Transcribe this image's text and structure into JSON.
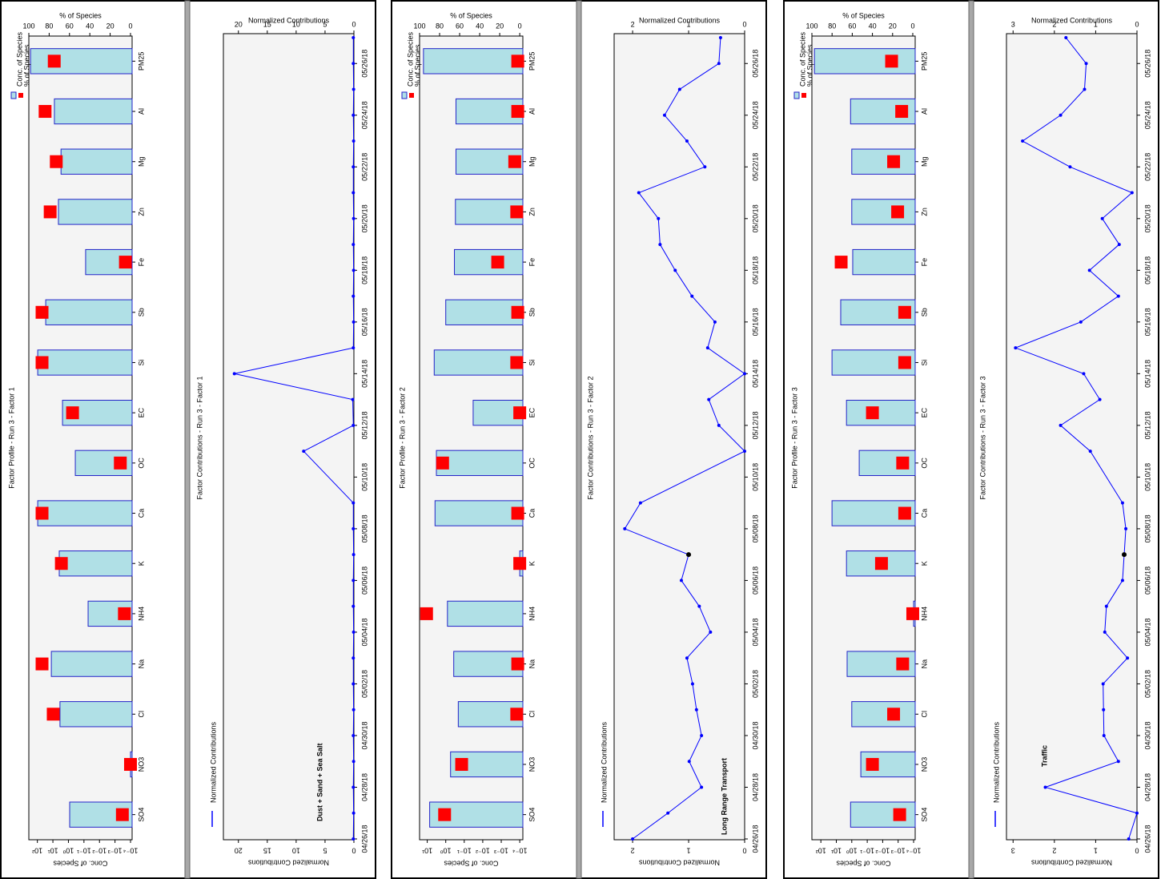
{
  "chart_data": [
    {
      "type": "bar",
      "title": "Factor Profile - Run 3 - Factor 1",
      "ylabel": "Conc. of Species",
      "y2label": "% of Species",
      "log_scale": true,
      "categories": [
        "PM25",
        "Al",
        "Mg",
        "Zn",
        "Fe",
        "Sb",
        "Si",
        "EC",
        "OC",
        "Ca",
        "K",
        "NH4",
        "Na",
        "Cl",
        "NO3",
        "SO4"
      ],
      "series": [
        {
          "name": "Conc. of Species",
          "color": "#b0e0e6",
          "values": [
            275,
            8,
            3,
            4.4,
            0.078,
            29,
            95,
            2.4,
            0.36,
            95,
            3.9,
            0.054,
            12.6,
            3.5,
            0.0001,
            0.83
          ]
        },
        {
          "name": "% of Species",
          "color": "#ff0000",
          "axis": "y2",
          "values": [
            75,
            84,
            73,
            79,
            5,
            87,
            87,
            57,
            10,
            87,
            68,
            6,
            87,
            76,
            0,
            8
          ]
        }
      ],
      "ylim": [
        7.9e-05,
        355
      ],
      "yticks": [
        {
          "value": 100,
          "label": "10²"
        },
        {
          "value": 10,
          "label": "10¹"
        },
        {
          "value": 1,
          "label": "10⁰"
        },
        {
          "value": 0.1,
          "label": "10⁻¹"
        },
        {
          "value": 0.01,
          "label": "10⁻²"
        },
        {
          "value": 0.001,
          "label": "10⁻³"
        },
        {
          "value": 0.0001,
          "label": "10⁻⁴"
        }
      ],
      "y2lim": [
        -1.6,
        100
      ],
      "y2ticks": [
        0,
        20,
        40,
        60,
        80,
        100
      ]
    },
    {
      "type": "line",
      "title": "Factor Contributions - Run 3 - Factor 1",
      "ylabel": "Normalized Contributions",
      "annotation": "Dust + Sand + Sea Salt",
      "x": [
        "04/26/18",
        "04/27/18",
        "04/28/18",
        "04/29/18",
        "04/30/18",
        "05/01/18",
        "05/02/18",
        "05/03/18",
        "05/04/18",
        "05/05/18",
        "05/06/18",
        "05/07/18",
        "05/08/18",
        "05/09/18",
        "05/11/18",
        "05/12/18",
        "05/13/18",
        "05/14/18",
        "05/15/18",
        "05/16/18",
        "05/17/18",
        "05/18/18",
        "05/19/18",
        "05/20/18",
        "05/21/18",
        "05/22/18",
        "05/23/18",
        "05/24/18",
        "05/25/18",
        "05/26/18",
        "05/27/18"
      ],
      "series": [
        {
          "name": "Normalized Contributions",
          "color": "#0000ff",
          "values": [
            0.1,
            0.05,
            0.1,
            0.05,
            0.1,
            0.05,
            0.1,
            0.1,
            0.05,
            0.1,
            0.1,
            0.05,
            0.1,
            0.1,
            8.7,
            0.1,
            0.2,
            20.7,
            0.1,
            0.05,
            0.1,
            0.05,
            0.1,
            0.05,
            0.1,
            0.1,
            0.05,
            0.1,
            0.05,
            0.1,
            0.1
          ]
        }
      ],
      "xlim": [
        "04/26/18",
        "05/27/18"
      ],
      "xticks": [
        "04/26/18",
        "04/28/18",
        "04/30/18",
        "05/02/18",
        "05/04/18",
        "05/06/18",
        "05/08/18",
        "05/10/18",
        "05/12/18",
        "05/14/18",
        "05/16/18",
        "05/18/18",
        "05/20/18",
        "05/22/18",
        "05/24/18",
        "05/26/18"
      ],
      "ylim": [
        0,
        22.6
      ],
      "yticks": [
        0,
        5,
        10,
        15,
        20
      ]
    },
    {
      "type": "bar",
      "title": "Factor Profile - Run 3 - Factor 2",
      "ylabel": "Conc. of Species",
      "y2label": "% of Species",
      "log_scale": true,
      "categories": [
        "PM25",
        "Al",
        "Mg",
        "Zn",
        "Fe",
        "Sb",
        "Si",
        "EC",
        "OC",
        "Ca",
        "K",
        "NH4",
        "Na",
        "Cl",
        "NO3",
        "SO4"
      ],
      "series": [
        {
          "name": "Conc. of Species",
          "color": "#b0e0e6",
          "values": [
            16,
            0.28,
            0.28,
            0.3,
            0.34,
            1.0,
            4.2,
            0.033,
            3.2,
            3.8,
            0.0001,
            0.81,
            0.37,
            0.21,
            0.55,
            7.4
          ]
        },
        {
          "name": "% of Species",
          "color": "#ff0000",
          "axis": "y2",
          "values": [
            2,
            2,
            5,
            3,
            22,
            2,
            3,
            0,
            77,
            2,
            0,
            93,
            2,
            3,
            58,
            75
          ]
        }
      ],
      "ylim": [
        6.8e-05,
        26
      ],
      "yticks": [
        {
          "value": 10,
          "label": "10¹"
        },
        {
          "value": 1,
          "label": "10⁰"
        },
        {
          "value": 0.1,
          "label": "10⁻¹"
        },
        {
          "value": 0.01,
          "label": "10⁻²"
        },
        {
          "value": 0.001,
          "label": "10⁻³"
        },
        {
          "value": 0.0001,
          "label": "10⁻⁴"
        }
      ],
      "y2lim": [
        -3.1,
        100
      ],
      "y2ticks": [
        0,
        20,
        40,
        60,
        80,
        100
      ]
    },
    {
      "type": "line",
      "title": "Factor Contributions - Run 3 - Factor 2",
      "ylabel": "Normalized Contributions",
      "annotation": "Long Range Transport",
      "highlight": "05/07/18",
      "x": [
        "04/26/18",
        "04/27/18",
        "04/28/18",
        "04/29/18",
        "04/30/18",
        "05/01/18",
        "05/02/18",
        "05/03/18",
        "05/04/18",
        "05/05/18",
        "05/06/18",
        "05/07/18",
        "05/08/18",
        "05/09/18",
        "05/11/18",
        "05/12/18",
        "05/13/18",
        "05/14/18",
        "05/15/18",
        "05/16/18",
        "05/17/18",
        "05/18/18",
        "05/19/18",
        "05/20/18",
        "05/21/18",
        "05/22/18",
        "05/23/18",
        "05/24/18",
        "05/25/18",
        "05/26/18",
        "05/27/18"
      ],
      "series": [
        {
          "name": "Normalized Contributions",
          "color": "#0000ff",
          "values": [
            2.0,
            1.37,
            0.77,
            0.99,
            0.77,
            0.86,
            0.93,
            1.03,
            0.61,
            0.81,
            1.13,
            1.0,
            2.14,
            1.86,
            0,
            0.46,
            0.64,
            0,
            0.66,
            0.53,
            0.94,
            1.24,
            1.51,
            1.54,
            1.89,
            0.71,
            1.03,
            1.43,
            1.16,
            0.46,
            0.43
          ]
        }
      ],
      "xlim": [
        "04/26/18",
        "05/27/18"
      ],
      "xticks": [
        "04/26/18",
        "04/28/18",
        "04/30/18",
        "05/02/18",
        "05/04/18",
        "05/06/18",
        "05/08/18",
        "05/10/18",
        "05/12/18",
        "05/14/18",
        "05/16/18",
        "05/18/18",
        "05/20/18",
        "05/22/18",
        "05/24/18",
        "05/26/18"
      ],
      "ylim": [
        0,
        2.33
      ],
      "yticks": [
        0,
        1,
        2
      ]
    },
    {
      "type": "bar",
      "title": "Factor Profile - Run 3 - Factor 3",
      "ylabel": "Conc. of Species",
      "y2label": "% of Species",
      "log_scale": true,
      "categories": [
        "PM25",
        "Al",
        "Mg",
        "Zn",
        "Fe",
        "Sb",
        "Si",
        "EC",
        "OC",
        "Ca",
        "K",
        "NH4",
        "Na",
        "Cl",
        "NO3",
        "SO4"
      ],
      "series": [
        {
          "name": "Conc. of Species",
          "color": "#b0e0e6",
          "values": [
            260,
            1.2,
            1.0,
            1.0,
            0.87,
            5.2,
            19,
            2.2,
            0.33,
            19,
            2.2,
            0.0001,
            2.0,
            1.0,
            0.26,
            1.2
          ]
        },
        {
          "name": "% of Species",
          "color": "#ff0000",
          "axis": "y2",
          "values": [
            21,
            11,
            19,
            15,
            71,
            8,
            8,
            40,
            10,
            8,
            31,
            0,
            10,
            19,
            40,
            13
          ]
        }
      ],
      "ylim": [
        7.9e-05,
        380
      ],
      "yticks": [
        {
          "value": 100,
          "label": "10²"
        },
        {
          "value": 10,
          "label": "10¹"
        },
        {
          "value": 1,
          "label": "10⁰"
        },
        {
          "value": 0.1,
          "label": "10⁻¹"
        },
        {
          "value": 0.01,
          "label": "10⁻²"
        },
        {
          "value": 0.001,
          "label": "10⁻³"
        },
        {
          "value": 0.0001,
          "label": "10⁻⁴"
        }
      ],
      "y2lim": [
        -2.4,
        100
      ],
      "y2ticks": [
        0,
        20,
        40,
        60,
        80,
        100
      ]
    },
    {
      "type": "line",
      "title": "Factor Contributions - Run 3 - Factor 3",
      "ylabel": "Normalized Contributions",
      "annotation": "Traffic",
      "highlight": "05/07/18",
      "x": [
        "04/26/18",
        "04/27/18",
        "04/28/18",
        "04/29/18",
        "04/30/18",
        "05/01/18",
        "05/02/18",
        "05/03/18",
        "05/04/18",
        "05/05/18",
        "05/06/18",
        "05/07/18",
        "05/08/18",
        "05/09/18",
        "05/11/18",
        "05/12/18",
        "05/13/18",
        "05/14/18",
        "05/15/18",
        "05/16/18",
        "05/17/18",
        "05/18/18",
        "05/19/18",
        "05/20/18",
        "05/21/18",
        "05/22/18",
        "05/23/18",
        "05/24/18",
        "05/25/18",
        "05/26/18",
        "05/27/18"
      ],
      "series": [
        {
          "name": "Normalized Contributions",
          "color": "#0000ff",
          "values": [
            0.2,
            0.0,
            2.22,
            0.45,
            0.8,
            0.81,
            0.82,
            0.23,
            0.78,
            0.74,
            0.35,
            0.31,
            0.27,
            0.35,
            1.13,
            1.85,
            0.9,
            1.29,
            2.94,
            1.36,
            0.45,
            1.15,
            0.43,
            0.84,
            0.12,
            1.62,
            2.77,
            1.85,
            1.27,
            1.23,
            1.72
          ]
        }
      ],
      "xlim": [
        "04/26/18",
        "05/27/18"
      ],
      "xticks": [
        "04/26/18",
        "04/28/18",
        "04/30/18",
        "05/02/18",
        "05/04/18",
        "05/06/18",
        "05/08/18",
        "05/10/18",
        "05/12/18",
        "05/14/18",
        "05/16/18",
        "05/18/18",
        "05/20/18",
        "05/22/18",
        "05/24/18",
        "05/26/18"
      ],
      "ylim": [
        0,
        3.16
      ],
      "yticks": [
        0,
        1,
        2,
        3
      ]
    }
  ]
}
